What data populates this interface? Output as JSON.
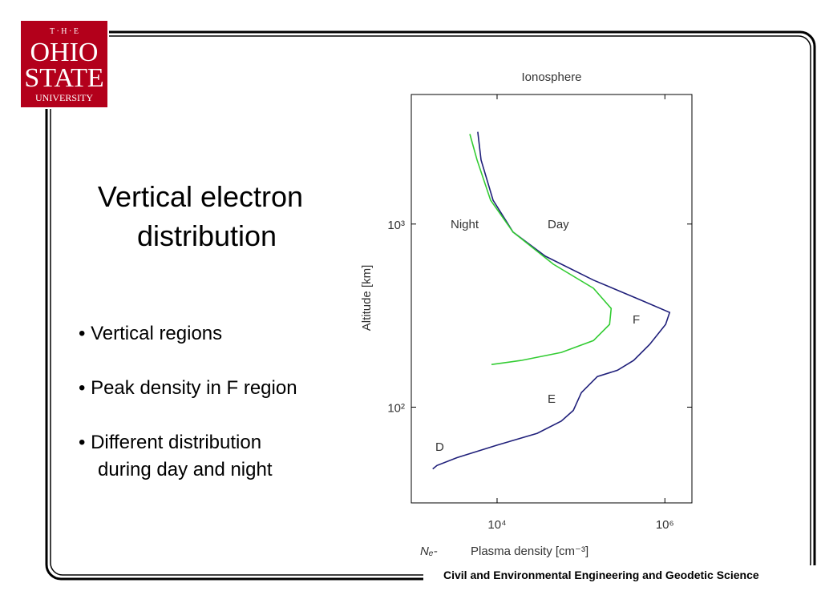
{
  "logo": {
    "lines": [
      "T · H · E",
      "OHIO",
      "STATE",
      "UNIVERSITY"
    ]
  },
  "heading": [
    "Vertical electron",
    "distribution"
  ],
  "bullets": [
    [
      "• Vertical regions"
    ],
    [
      "• Peak density in F region"
    ],
    [
      "• Different distribution",
      "during day and night"
    ]
  ],
  "footer": "Civil and Environmental Engineering and Geodetic Science",
  "chart_data": {
    "type": "line",
    "title": "Ionosphere",
    "xlabel": "Plasma density [cm⁻³]",
    "xlabel_prefix": "Nₑ-",
    "ylabel": "Altitude [km]",
    "log_x": true,
    "log_y": true,
    "xlim": [
      950,
      2100000
    ],
    "ylim": [
      30,
      5100
    ],
    "xticks": [
      {
        "value": 10000,
        "label": "10⁴"
      },
      {
        "value": 1000000,
        "label": "10⁶"
      }
    ],
    "yticks": [
      {
        "value": 100,
        "label": "10²"
      },
      {
        "value": 1000,
        "label": "10³"
      }
    ],
    "series": [
      {
        "name": "Day",
        "color": "#1f1f7a",
        "x": [
          5890,
          6440,
          8960,
          15500,
          37500,
          141000,
          527000,
          1140000,
          1020000,
          658000,
          424000,
          272000,
          157000,
          101000,
          81100,
          58300,
          30100,
          10000,
          3330,
          1920,
          1710
        ],
        "values": [
          3190,
          2240,
          1350,
          904,
          668,
          494,
          383,
          329,
          283,
          220,
          180,
          159,
          147,
          120,
          96,
          84,
          72,
          62,
          53,
          48,
          46
        ]
      },
      {
        "name": "Night",
        "color": "#33cc33",
        "x": [
          4730,
          5770,
          8380,
          15500,
          46800,
          141000,
          229000,
          219000,
          141000,
          58300,
          19400,
          8580
        ],
        "values": [
          3100,
          2240,
          1350,
          904,
          604,
          446,
          346,
          283,
          231,
          199,
          180,
          171
        ]
      }
    ],
    "annotations": [
      "F",
      "E",
      "D"
    ]
  }
}
